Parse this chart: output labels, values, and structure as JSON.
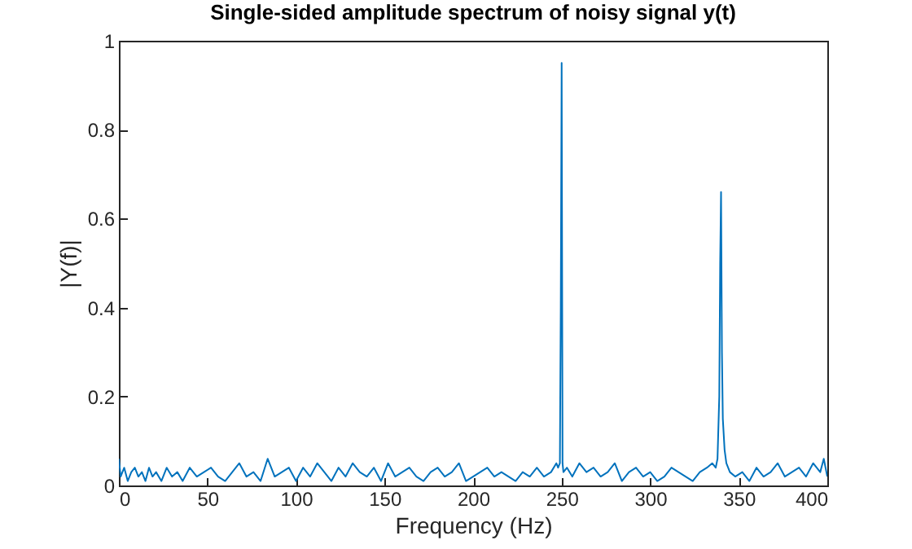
{
  "chart_data": {
    "type": "line",
    "title": "Single-sided amplitude spectrum of noisy signal y(t)",
    "xlabel": "Frequency (Hz)",
    "ylabel": "|Y(f)|",
    "xlim": [
      0,
      400
    ],
    "ylim": [
      0,
      1
    ],
    "xticks": [
      0,
      50,
      100,
      150,
      200,
      250,
      300,
      350,
      400
    ],
    "yticks": [
      0,
      0.2,
      0.4,
      0.6,
      0.8,
      1
    ],
    "grid": false,
    "series": [
      {
        "color": "#0072bd",
        "x": [
          0,
          1,
          3,
          5,
          7,
          9,
          11,
          13,
          15,
          17,
          19,
          21,
          24,
          27,
          30,
          33,
          36,
          40,
          44,
          48,
          52,
          56,
          60,
          64,
          68,
          72,
          76,
          80,
          84,
          88,
          92,
          96,
          100,
          104,
          108,
          112,
          116,
          120,
          124,
          128,
          132,
          136,
          140,
          144,
          148,
          152,
          156,
          160,
          164,
          168,
          172,
          176,
          180,
          184,
          188,
          192,
          196,
          200,
          204,
          208,
          212,
          216,
          220,
          224,
          228,
          232,
          236,
          240,
          244,
          247,
          248,
          249,
          249.5,
          250,
          250.5,
          251,
          253,
          256,
          260,
          264,
          268,
          272,
          276,
          280,
          284,
          288,
          292,
          296,
          300,
          304,
          308,
          312,
          316,
          320,
          324,
          328,
          332,
          335,
          337,
          338,
          339,
          339.5,
          340,
          340.5,
          341,
          342,
          343,
          345,
          348,
          352,
          356,
          360,
          364,
          368,
          372,
          376,
          380,
          384,
          388,
          392,
          396,
          398,
          400
        ],
        "values": [
          0.06,
          0.02,
          0.04,
          0.01,
          0.03,
          0.04,
          0.02,
          0.03,
          0.01,
          0.04,
          0.02,
          0.03,
          0.01,
          0.04,
          0.02,
          0.03,
          0.01,
          0.04,
          0.02,
          0.03,
          0.04,
          0.02,
          0.01,
          0.03,
          0.05,
          0.02,
          0.03,
          0.01,
          0.06,
          0.02,
          0.03,
          0.04,
          0.01,
          0.04,
          0.02,
          0.05,
          0.03,
          0.01,
          0.04,
          0.02,
          0.05,
          0.03,
          0.02,
          0.04,
          0.01,
          0.05,
          0.02,
          0.03,
          0.04,
          0.02,
          0.01,
          0.03,
          0.04,
          0.02,
          0.03,
          0.05,
          0.01,
          0.02,
          0.03,
          0.04,
          0.02,
          0.03,
          0.02,
          0.01,
          0.03,
          0.02,
          0.04,
          0.02,
          0.03,
          0.05,
          0.04,
          0.05,
          0.4,
          0.95,
          0.05,
          0.03,
          0.04,
          0.02,
          0.05,
          0.03,
          0.04,
          0.02,
          0.03,
          0.05,
          0.01,
          0.03,
          0.04,
          0.02,
          0.03,
          0.01,
          0.02,
          0.04,
          0.03,
          0.02,
          0.01,
          0.03,
          0.04,
          0.05,
          0.04,
          0.06,
          0.2,
          0.5,
          0.66,
          0.3,
          0.15,
          0.08,
          0.05,
          0.03,
          0.02,
          0.03,
          0.01,
          0.04,
          0.02,
          0.03,
          0.05,
          0.02,
          0.03,
          0.04,
          0.02,
          0.05,
          0.03,
          0.06,
          0.02
        ]
      }
    ]
  }
}
